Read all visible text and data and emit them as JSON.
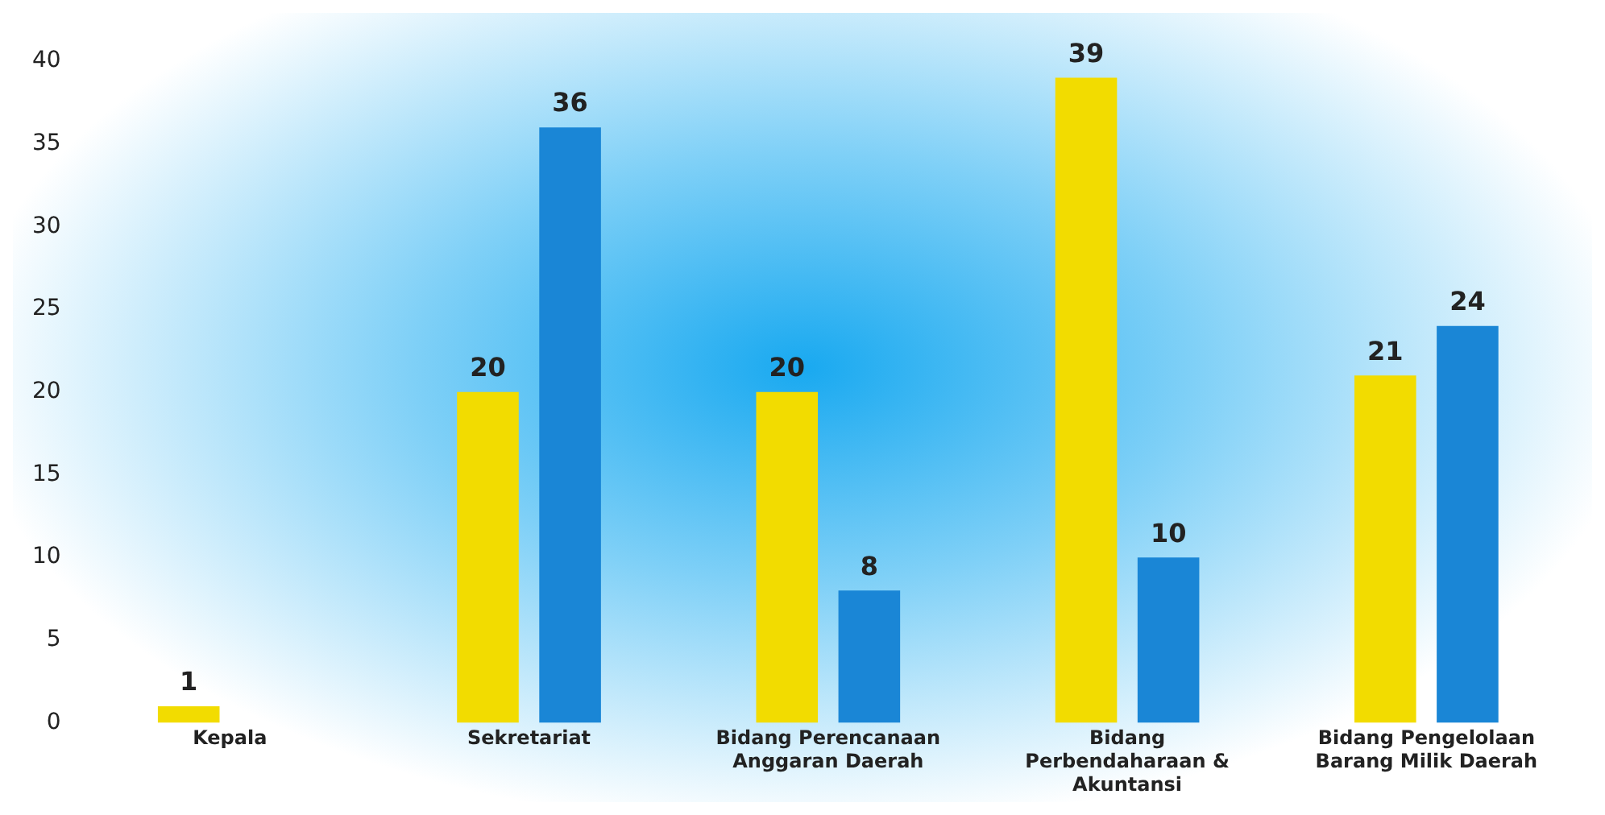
{
  "chart_data": {
    "type": "bar",
    "categories": [
      "Kepala",
      "Sekretariat",
      "Bidang Perencanaan Anggaran Daerah",
      "Bidang Perbendaharaan & Akuntansi",
      "Bidang Pengelolaan Barang Milik Daerah"
    ],
    "series": [
      {
        "color": "#f2dc00",
        "values": [
          1,
          20,
          20,
          39,
          21
        ]
      },
      {
        "color": "#1a86d6",
        "values": [
          null,
          36,
          8,
          10,
          24
        ]
      }
    ],
    "ylim": [
      0,
      40
    ],
    "yticks": [
      0,
      5,
      10,
      15,
      20,
      25,
      30,
      35,
      40
    ],
    "grid": false,
    "legend": false,
    "data_labels": true
  }
}
